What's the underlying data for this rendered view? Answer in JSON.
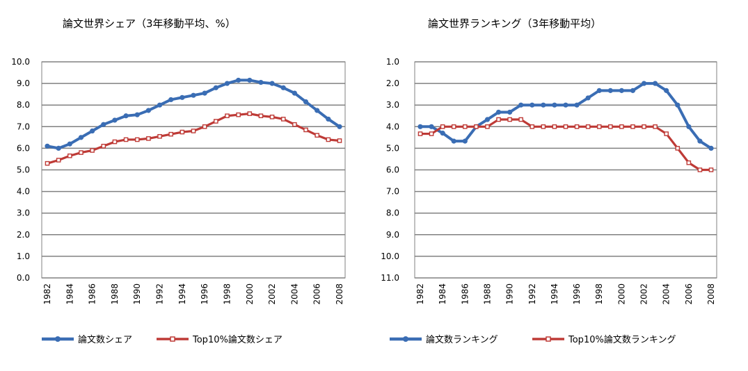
{
  "colors": {
    "blue": "#3a6db4",
    "red": "#be3a36",
    "grid": "#808080"
  },
  "chart_data": [
    {
      "type": "line",
      "title": "論文世界シェア（3年移動平均、%）",
      "xlabel": "",
      "ylabel": "",
      "x": [
        1982,
        1983,
        1984,
        1985,
        1986,
        1987,
        1988,
        1989,
        1990,
        1991,
        1992,
        1993,
        1994,
        1995,
        1996,
        1997,
        1998,
        1999,
        2000,
        2001,
        2002,
        2003,
        2004,
        2005,
        2006,
        2007,
        2008
      ],
      "x_tick_labels": [
        "1982",
        "1984",
        "1986",
        "1988",
        "1990",
        "1992",
        "1994",
        "1996",
        "1998",
        "2000",
        "2002",
        "2004",
        "2006",
        "2008"
      ],
      "y_tick_labels": [
        "10.0",
        "9.0",
        "8.0",
        "7.0",
        "6.0",
        "5.0",
        "4.0",
        "3.0",
        "2.0",
        "1.0",
        "0.0"
      ],
      "ylim": [
        0,
        10
      ],
      "y_inverted": false,
      "grid": true,
      "legend_position": "bottom",
      "series": [
        {
          "name": "論文数シェア",
          "color": "#3a6db4",
          "marker": "circle",
          "values": [
            6.1,
            6.0,
            6.2,
            6.5,
            6.8,
            7.1,
            7.3,
            7.5,
            7.55,
            7.75,
            8.0,
            8.25,
            8.35,
            8.45,
            8.55,
            8.8,
            9.0,
            9.15,
            9.15,
            9.05,
            9.0,
            8.8,
            8.55,
            8.15,
            7.75,
            7.35,
            7.0
          ]
        },
        {
          "name": "Top10%論文数シェア",
          "color": "#be3a36",
          "marker": "square",
          "values": [
            5.3,
            5.45,
            5.65,
            5.8,
            5.9,
            6.1,
            6.3,
            6.4,
            6.4,
            6.45,
            6.55,
            6.65,
            6.75,
            6.8,
            7.0,
            7.25,
            7.5,
            7.55,
            7.6,
            7.5,
            7.45,
            7.35,
            7.1,
            6.85,
            6.6,
            6.4,
            6.35
          ]
        }
      ]
    },
    {
      "type": "line",
      "title": "論文世界ランキング（3年移動平均）",
      "xlabel": "",
      "ylabel": "",
      "x": [
        1982,
        1983,
        1984,
        1985,
        1986,
        1987,
        1988,
        1989,
        1990,
        1991,
        1992,
        1993,
        1994,
        1995,
        1996,
        1997,
        1998,
        1999,
        2000,
        2001,
        2002,
        2003,
        2004,
        2005,
        2006,
        2007,
        2008
      ],
      "x_tick_labels": [
        "1982",
        "1984",
        "1986",
        "1988",
        "1990",
        "1992",
        "1994",
        "1996",
        "1998",
        "2000",
        "2002",
        "2004",
        "2006",
        "2008"
      ],
      "y_tick_labels": [
        "1.0",
        "2.0",
        "3.0",
        "4.0",
        "5.0",
        "6.0",
        "7.0",
        "8.0",
        "9.0",
        "10.0",
        "11.0"
      ],
      "ylim": [
        1,
        11
      ],
      "y_inverted": true,
      "grid": true,
      "legend_position": "bottom",
      "series": [
        {
          "name": "論文数ランキング",
          "color": "#3a6db4",
          "marker": "circle",
          "values": [
            4.0,
            4.0,
            4.3,
            4.67,
            4.67,
            4.0,
            3.67,
            3.33,
            3.33,
            3.0,
            3.0,
            3.0,
            3.0,
            3.0,
            3.0,
            2.67,
            2.33,
            2.33,
            2.33,
            2.33,
            2.0,
            2.0,
            2.33,
            3.0,
            4.0,
            4.67,
            5.0
          ]
        },
        {
          "name": "Top10%論文数ランキング",
          "color": "#be3a36",
          "marker": "square",
          "values": [
            4.33,
            4.33,
            4.0,
            4.0,
            4.0,
            4.0,
            4.0,
            3.67,
            3.67,
            3.67,
            4.0,
            4.0,
            4.0,
            4.0,
            4.0,
            4.0,
            4.0,
            4.0,
            4.0,
            4.0,
            4.0,
            4.0,
            4.33,
            5.0,
            5.67,
            6.0,
            6.0
          ]
        }
      ]
    }
  ]
}
